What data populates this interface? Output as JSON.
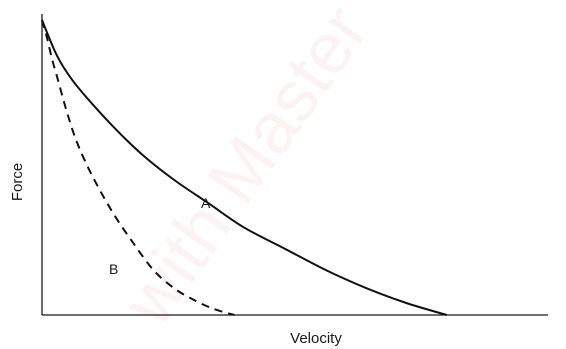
{
  "chart_data": {
    "type": "line",
    "title": "",
    "xlabel": "Velocity",
    "ylabel": "Force",
    "xlim": [
      0,
      100
    ],
    "ylim": [
      0,
      100
    ],
    "grid": false,
    "series": [
      {
        "name": "A",
        "style": "solid",
        "color": "#111111",
        "x": [
          0,
          3,
          6,
          10,
          15,
          20,
          26,
          33,
          40,
          48,
          56,
          64,
          72,
          80
        ],
        "y": [
          98,
          86,
          78,
          70,
          61,
          53,
          45,
          37,
          29,
          22,
          15,
          9,
          4,
          0
        ]
      },
      {
        "name": "B",
        "style": "dashed",
        "color": "#111111",
        "x": [
          0,
          1,
          2,
          3,
          5,
          7,
          10,
          14,
          18,
          22,
          26,
          30,
          34,
          38
        ],
        "y": [
          98,
          92,
          85,
          79,
          67,
          57,
          46,
          34,
          24,
          15,
          9,
          5,
          2,
          0
        ]
      }
    ],
    "annotations": [
      {
        "text": "A",
        "series": "A"
      },
      {
        "text": "B",
        "series": "B"
      }
    ]
  },
  "watermark": "with Master"
}
